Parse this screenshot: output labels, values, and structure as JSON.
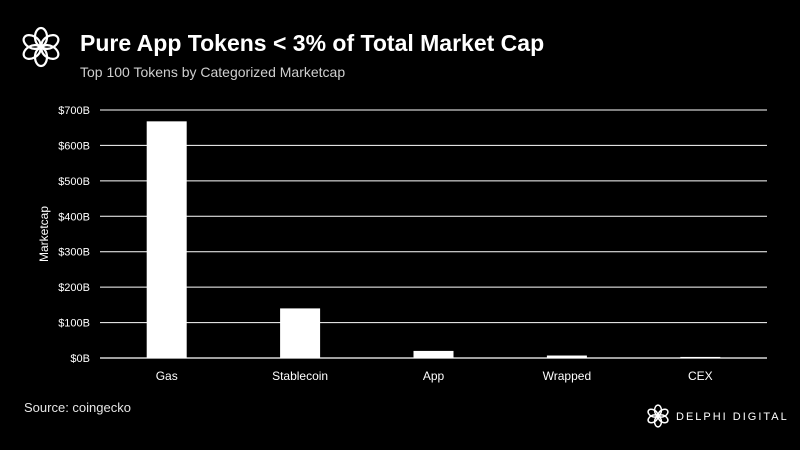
{
  "header": {
    "title": "Pure App Tokens < 3% of Total Market Cap",
    "subtitle": "Top 100 Tokens by Categorized Marketcap"
  },
  "footer": {
    "source": "Source: coingecko",
    "brand": "DELPHI DIGITAL"
  },
  "icons": {
    "header_logo": "delphi-flower-logo-icon",
    "brand_logo": "delphi-flower-logo-icon"
  },
  "colors": {
    "background": "#000000",
    "bar": "#ffffff",
    "gridline": "#ffffff",
    "text": "#ffffff"
  },
  "chart_data": {
    "type": "bar",
    "title": "Pure App Tokens < 3% of Total Market Cap",
    "subtitle": "Top 100 Tokens by Categorized Marketcap",
    "xlabel": "",
    "ylabel": "Marketcap",
    "categories": [
      "Gas",
      "Stablecoin",
      "App",
      "Wrapped",
      "CEX"
    ],
    "values": [
      668,
      140,
      20,
      7,
      3
    ],
    "ylim": [
      0,
      700
    ],
    "yticks": [
      0,
      100,
      200,
      300,
      400,
      500,
      600,
      700
    ],
    "ytick_labels": [
      "$0B",
      "$100B",
      "$200B",
      "$300B",
      "$400B",
      "$500B",
      "$600B",
      "$700B"
    ],
    "grid": true,
    "legend": "none"
  }
}
